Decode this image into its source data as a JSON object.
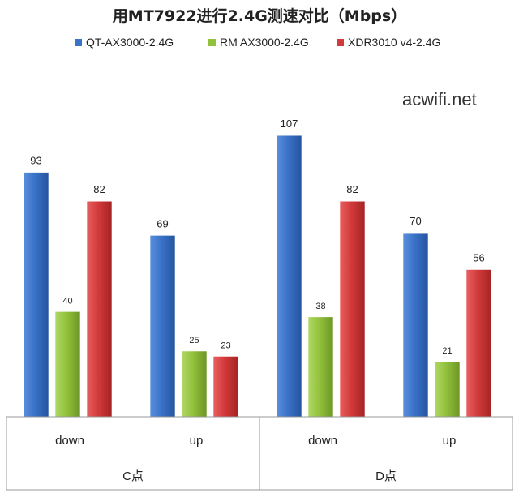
{
  "watermark": "acwifi.net",
  "chart_data": {
    "type": "bar",
    "title": "用MT7922进行2.4G测速对比（Mbps）",
    "groups": [
      {
        "label": "C点",
        "categories": [
          "down",
          "up"
        ]
      },
      {
        "label": "D点",
        "categories": [
          "down",
          "up"
        ]
      }
    ],
    "series": [
      {
        "name": "QT-AX3000-2.4G",
        "color": "#3a72c8",
        "values": [
          93,
          69,
          107,
          70
        ]
      },
      {
        "name": "RM AX3000-2.4G",
        "color": "#92c13c",
        "values": [
          40,
          25,
          38,
          21
        ]
      },
      {
        "name": "XDR3010 v4-2.4G",
        "color": "#d23a3a",
        "values": [
          82,
          23,
          82,
          56
        ]
      }
    ],
    "ylim": [
      0,
      116
    ],
    "grid": false,
    "legend_position": "top"
  }
}
